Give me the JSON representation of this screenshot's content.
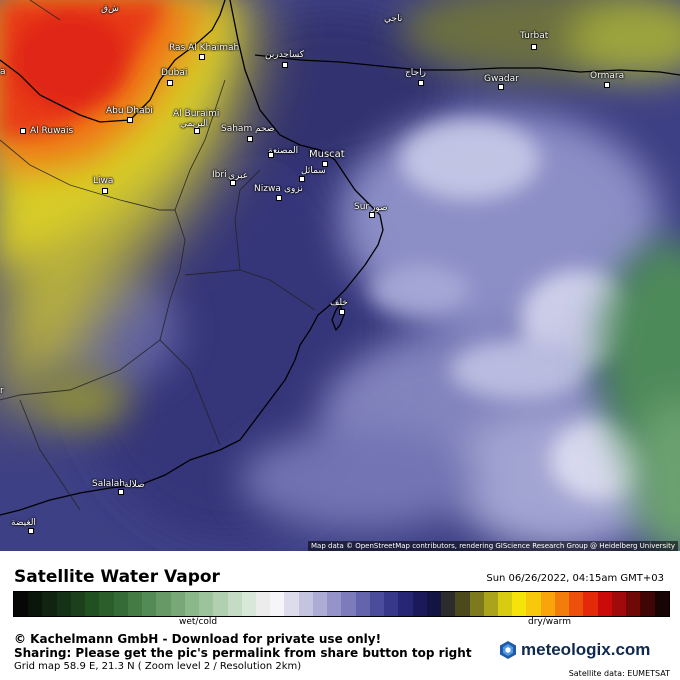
{
  "map": {
    "cities": [
      {
        "id": "shiq",
        "text": "ش‌ق"
      },
      {
        "id": "najih",
        "text": "ناجي"
      },
      {
        "id": "turbat",
        "text": "Turbat"
      },
      {
        "id": "ras-al-khaimah",
        "text": "Ras Al Khaimah"
      },
      {
        "id": "kajin",
        "text": "كساجدربن"
      },
      {
        "id": "dubai",
        "text": "Dubai"
      },
      {
        "id": "rahaj",
        "text": "راجاج"
      },
      {
        "id": "gwadar",
        "text": "Gwadar"
      },
      {
        "id": "ormara",
        "text": "Ormara"
      },
      {
        "id": "abu-dhabi",
        "text": "Abu Dhabi"
      },
      {
        "id": "al-buraimi",
        "text": "Al Buraimi"
      },
      {
        "id": "al-buraimi-ar",
        "text": "البريمي"
      },
      {
        "id": "al-ruwais",
        "text": "Al Ruwais"
      },
      {
        "id": "saham",
        "text": "Saham"
      },
      {
        "id": "saham-ar",
        "text": "صحم"
      },
      {
        "id": "al-musanaa",
        "text": "المصنعة"
      },
      {
        "id": "muscat",
        "text": "Muscat"
      },
      {
        "id": "samail",
        "text": "سمائل"
      },
      {
        "id": "ibri",
        "text": "Ibri"
      },
      {
        "id": "ibri-ar",
        "text": "عبري"
      },
      {
        "id": "liwa",
        "text": "Liwa"
      },
      {
        "id": "nizwa",
        "text": "Nizwa"
      },
      {
        "id": "nizwa-ar",
        "text": "نزوى"
      },
      {
        "id": "sur",
        "text": "Sur"
      },
      {
        "id": "sur-ar",
        "text": "صور"
      },
      {
        "id": "khaluf",
        "text": "خلف"
      },
      {
        "id": "salalah",
        "text": "Salalah"
      },
      {
        "id": "salalah-ar",
        "text": "صلالة"
      },
      {
        "id": "al-ghaydah",
        "text": "الغيضة"
      },
      {
        "id": "edge-left-top",
        "text": "a"
      },
      {
        "id": "edge-left-mid",
        "text": "r"
      }
    ],
    "attribution": "Map data © OpenStreetMap contributors, rendering GIScience Research Group @ Heidelberg University"
  },
  "footer": {
    "title": "Satellite Water Vapor",
    "timestamp": "Sun 06/26/2022, 04:15am GMT+03",
    "scale_left": "wet/cold",
    "scale_right": "dry/warm",
    "copyright": "© Kachelmann GmbH - Download for private use only!",
    "sharing": "Sharing: Please get the pic's permalink from share button top right",
    "grid_info": "Grid map 58.9 E, 21.3 N ( Zoom level 2 / Resolution 2km)",
    "brand": "meteologix.com",
    "satellite_source": "Satellite data: EUMETSAT"
  },
  "colors": {
    "scale": [
      "#050805",
      "#0b160b",
      "#112411",
      "#163216",
      "#1b401b",
      "#215021",
      "#2b5e2b",
      "#356c35",
      "#447a44",
      "#548a54",
      "#669966",
      "#78a878",
      "#8ab88a",
      "#9cc49c",
      "#b0d0b0",
      "#c4dcc4",
      "#d8e8d8",
      "#ececec",
      "#f6f6fa",
      "#dcdcec",
      "#c4c4e0",
      "#acacd4",
      "#9494c8",
      "#7c7cbc",
      "#6464ac",
      "#4c4c9c",
      "#38388a",
      "#262674",
      "#1a1a5a",
      "#141444",
      "#2c2c2c",
      "#4c4a1c",
      "#7c7a1c",
      "#aaa41a",
      "#d8cc12",
      "#f4e40a",
      "#f8c80a",
      "#f8a40a",
      "#f47c0a",
      "#ec500a",
      "#e4280a",
      "#cc0a0a",
      "#a00a0a",
      "#700808",
      "#400606",
      "#180404"
    ],
    "brand": "#102a4f"
  }
}
